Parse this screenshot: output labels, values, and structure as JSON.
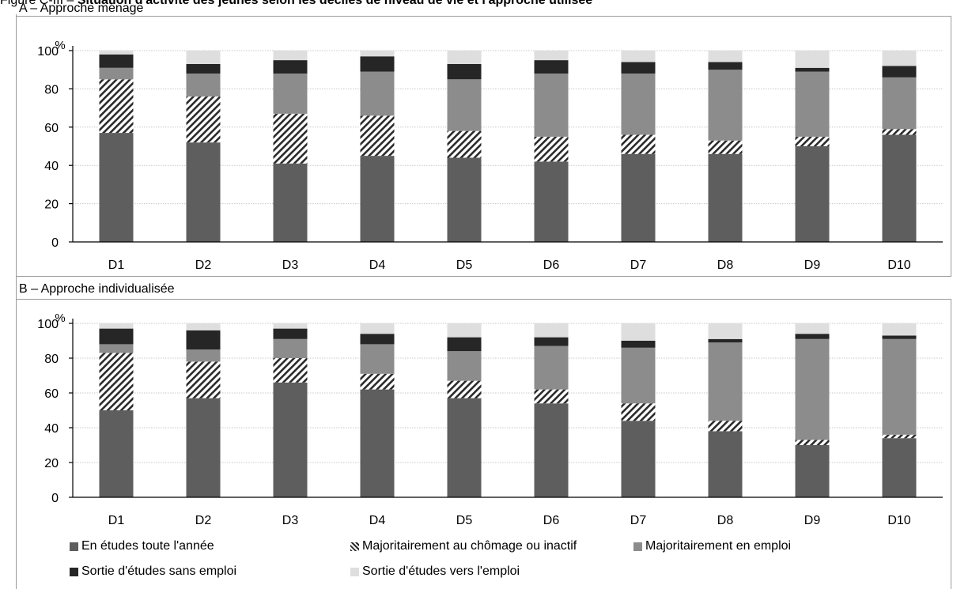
{
  "figure": {
    "title_prefix": "Figure C-III – ",
    "title_main": "Situation d'activité des jeunes selon les déciles de niveau de vie et l'approche utilisée"
  },
  "colors": {
    "etudes": "#5e5e5e",
    "chomage_fg": "#2a2a2a",
    "chomage_bg": "#ffffff",
    "emploi": "#8c8c8c",
    "sortie_sans": "#262626",
    "sortie_vers": "#dedede",
    "grid": "#c8c8c8",
    "axis": "#000000"
  },
  "legend": [
    {
      "key": "etudes",
      "label": "En études toute l'année"
    },
    {
      "key": "chomage",
      "label": "Majoritairement au chômage ou inactif"
    },
    {
      "key": "emploi",
      "label": "Majoritairement en emploi"
    },
    {
      "key": "sortie_sans",
      "label": "Sortie d'études sans emploi"
    },
    {
      "key": "sortie_vers",
      "label": "Sortie d'études vers l'emploi"
    }
  ],
  "chart_data": [
    {
      "type": "bar",
      "stacked": true,
      "panel_label": "A – Approche ménage",
      "unit_label": "%",
      "ylim": [
        0,
        100
      ],
      "yticks": [
        "0",
        "20",
        "40",
        "60",
        "80",
        "100"
      ],
      "grid": true,
      "categories": [
        "D1",
        "D2",
        "D3",
        "D4",
        "D5",
        "D6",
        "D7",
        "D8",
        "D9",
        "D10"
      ],
      "series": [
        {
          "name": "En études toute l'année",
          "key": "etudes",
          "values": [
            57,
            52,
            41,
            45,
            44,
            42,
            46,
            46,
            50,
            56
          ]
        },
        {
          "name": "Majoritairement au chômage ou inactif",
          "key": "chomage",
          "values": [
            28,
            24,
            26,
            21,
            14,
            13,
            10,
            7,
            5,
            3
          ]
        },
        {
          "name": "Majoritairement en emploi",
          "key": "emploi",
          "values": [
            6,
            12,
            21,
            23,
            27,
            33,
            32,
            37,
            34,
            27
          ]
        },
        {
          "name": "Sortie d'études sans emploi",
          "key": "sortie_sans",
          "values": [
            7,
            5,
            7,
            8,
            8,
            7,
            6,
            4,
            2,
            6
          ]
        },
        {
          "name": "Sortie d'études vers l'emploi",
          "key": "sortie_vers",
          "values": [
            2,
            7,
            5,
            3,
            7,
            5,
            6,
            6,
            9,
            8
          ]
        }
      ]
    },
    {
      "type": "bar",
      "stacked": true,
      "panel_label": "B – Approche individualisée",
      "unit_label": "%",
      "ylim": [
        0,
        100
      ],
      "yticks": [
        "0",
        "20",
        "40",
        "60",
        "80",
        "100"
      ],
      "grid": true,
      "categories": [
        "D1",
        "D2",
        "D3",
        "D4",
        "D5",
        "D6",
        "D7",
        "D8",
        "D9",
        "D10"
      ],
      "series": [
        {
          "name": "En études toute l'année",
          "key": "etudes",
          "values": [
            50,
            57,
            66,
            62,
            57,
            54,
            44,
            38,
            30,
            34
          ]
        },
        {
          "name": "Majoritairement au chômage ou inactif",
          "key": "chomage",
          "values": [
            33,
            21,
            14,
            9,
            10,
            8,
            10,
            6,
            3,
            2
          ]
        },
        {
          "name": "Majoritairement en emploi",
          "key": "emploi",
          "values": [
            5,
            7,
            11,
            17,
            17,
            25,
            32,
            45,
            58,
            55
          ]
        },
        {
          "name": "Sortie d'études sans emploi",
          "key": "sortie_sans",
          "values": [
            9,
            11,
            6,
            6,
            8,
            5,
            4,
            2,
            3,
            2
          ]
        },
        {
          "name": "Sortie d'études vers l'emploi",
          "key": "sortie_vers",
          "values": [
            3,
            4,
            3,
            6,
            8,
            8,
            10,
            9,
            6,
            7
          ]
        }
      ]
    }
  ]
}
